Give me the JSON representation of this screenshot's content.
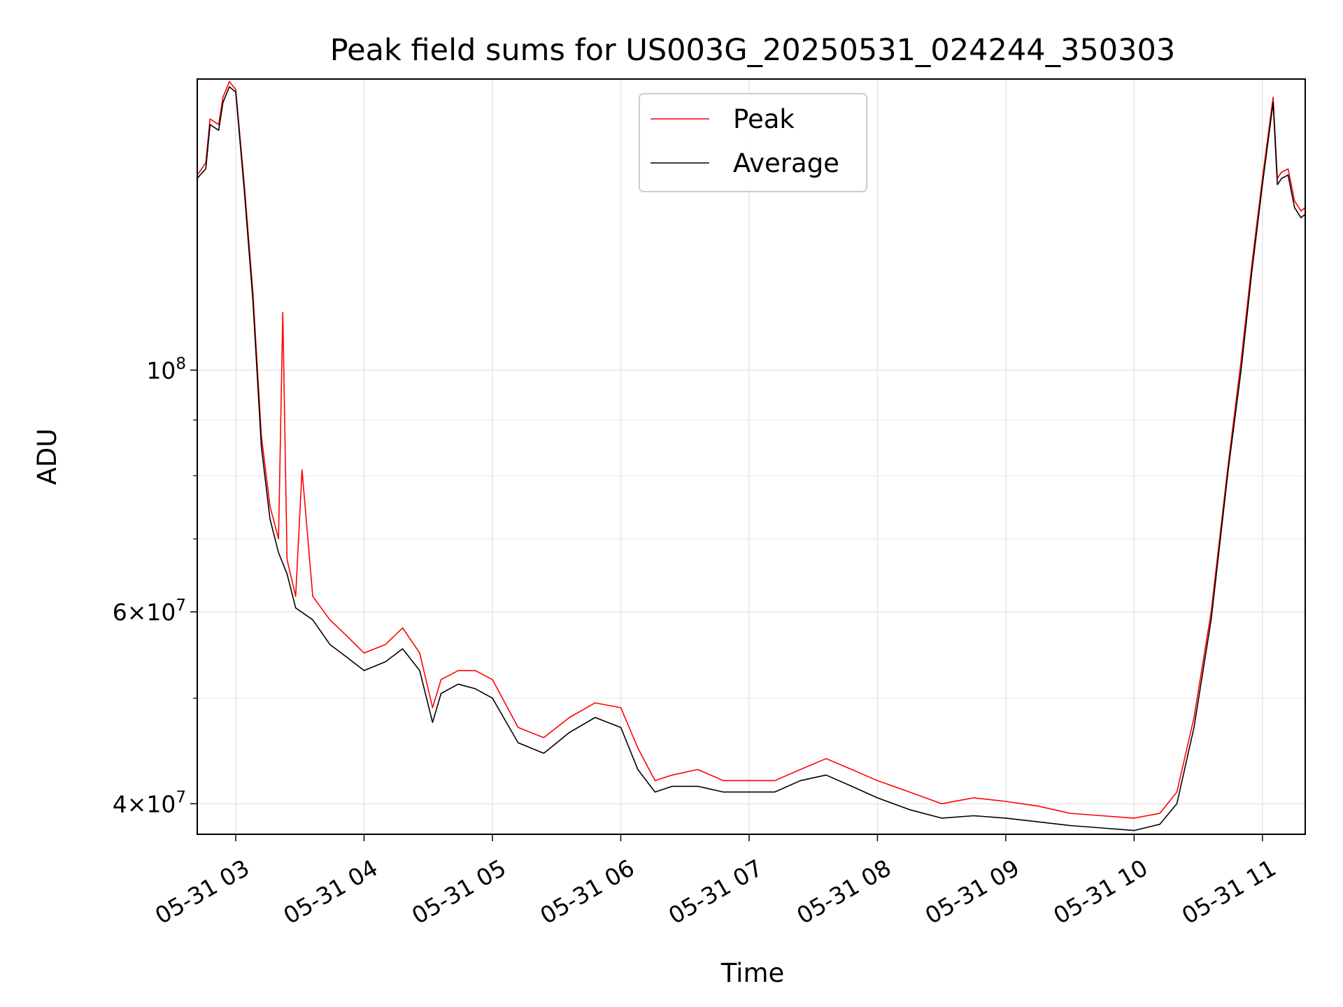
{
  "chart_data": {
    "type": "line",
    "title": "Peak field sums for US003G_20250531_024244_350303",
    "xlabel": "Time",
    "ylabel": "ADU",
    "yscale": "log",
    "ylim": [
      37500000,
      185000000
    ],
    "xlim": [
      "2025-05-31 02:42",
      "2025-05-31 11:20"
    ],
    "x_ticks": [
      "05-31 03",
      "05-31 04",
      "05-31 05",
      "05-31 06",
      "05-31 07",
      "05-31 08",
      "05-31 09",
      "05-31 10",
      "05-31 11"
    ],
    "y_ticks": [
      {
        "value": 40000000,
        "base": "4",
        "exp": "7",
        "kind": "mant"
      },
      {
        "value": 60000000,
        "base": "6",
        "exp": "7",
        "kind": "mant"
      },
      {
        "value": 100000000,
        "base": "10",
        "exp": "8",
        "kind": "pow"
      }
    ],
    "y_minor_ticks": [
      50000000,
      70000000,
      80000000,
      90000000
    ],
    "grid": true,
    "legend_position": "top-center",
    "series": [
      {
        "name": "Peak",
        "color": "#ff0000",
        "x": [
          "2025-05-31 02:42",
          "2025-05-31 02:46",
          "2025-05-31 02:48",
          "2025-05-31 02:52",
          "2025-05-31 02:54",
          "2025-05-31 02:57",
          "2025-05-31 03:00",
          "2025-05-31 03:04",
          "2025-05-31 03:08",
          "2025-05-31 03:12",
          "2025-05-31 03:16",
          "2025-05-31 03:20",
          "2025-05-31 03:22",
          "2025-05-31 03:24",
          "2025-05-31 03:28",
          "2025-05-31 03:31",
          "2025-05-31 03:36",
          "2025-05-31 03:44",
          "2025-05-31 03:52",
          "2025-05-31 04:00",
          "2025-05-31 04:10",
          "2025-05-31 04:18",
          "2025-05-31 04:26",
          "2025-05-31 04:32",
          "2025-05-31 04:36",
          "2025-05-31 04:44",
          "2025-05-31 04:52",
          "2025-05-31 05:00",
          "2025-05-31 05:12",
          "2025-05-31 05:24",
          "2025-05-31 05:36",
          "2025-05-31 05:48",
          "2025-05-31 06:00",
          "2025-05-31 06:08",
          "2025-05-31 06:16",
          "2025-05-31 06:24",
          "2025-05-31 06:36",
          "2025-05-31 06:48",
          "2025-05-31 07:00",
          "2025-05-31 07:12",
          "2025-05-31 07:24",
          "2025-05-31 07:36",
          "2025-05-31 07:48",
          "2025-05-31 08:00",
          "2025-05-31 08:15",
          "2025-05-31 08:30",
          "2025-05-31 08:45",
          "2025-05-31 09:00",
          "2025-05-31 09:15",
          "2025-05-31 09:30",
          "2025-05-31 09:45",
          "2025-05-31 10:00",
          "2025-05-31 10:12",
          "2025-05-31 10:20",
          "2025-05-31 10:28",
          "2025-05-31 10:36",
          "2025-05-31 10:44",
          "2025-05-31 10:50",
          "2025-05-31 10:55",
          "2025-05-31 11:00",
          "2025-05-31 11:05",
          "2025-05-31 11:07",
          "2025-05-31 11:09",
          "2025-05-31 11:12",
          "2025-05-31 11:15",
          "2025-05-31 11:18",
          "2025-05-31 11:20"
        ],
        "values": [
          151000000,
          155000000,
          170000000,
          168000000,
          178000000,
          184000000,
          181000000,
          148000000,
          118000000,
          87000000,
          75000000,
          70000000,
          113000000,
          67000000,
          62000000,
          81000000,
          62000000,
          59000000,
          57000000,
          55000000,
          56000000,
          58000000,
          55000000,
          49000000,
          52000000,
          53000000,
          53000000,
          52000000,
          47000000,
          46000000,
          48000000,
          49500000,
          49000000,
          45000000,
          42000000,
          42500000,
          43000000,
          42000000,
          42000000,
          42000000,
          43000000,
          44000000,
          43000000,
          42000000,
          41000000,
          40000000,
          40500000,
          40200000,
          39800000,
          39200000,
          39000000,
          38800000,
          39200000,
          41000000,
          48000000,
          60000000,
          82000000,
          102000000,
          125000000,
          150000000,
          178000000,
          150000000,
          152000000,
          153000000,
          143000000,
          140000000,
          141000000
        ]
      },
      {
        "name": "Average",
        "color": "#000000",
        "x": [
          "2025-05-31 02:42",
          "2025-05-31 02:46",
          "2025-05-31 02:48",
          "2025-05-31 02:52",
          "2025-05-31 02:54",
          "2025-05-31 02:57",
          "2025-05-31 03:00",
          "2025-05-31 03:04",
          "2025-05-31 03:08",
          "2025-05-31 03:12",
          "2025-05-31 03:16",
          "2025-05-31 03:20",
          "2025-05-31 03:24",
          "2025-05-31 03:28",
          "2025-05-31 03:36",
          "2025-05-31 03:44",
          "2025-05-31 03:52",
          "2025-05-31 04:00",
          "2025-05-31 04:10",
          "2025-05-31 04:18",
          "2025-05-31 04:26",
          "2025-05-31 04:32",
          "2025-05-31 04:36",
          "2025-05-31 04:44",
          "2025-05-31 04:52",
          "2025-05-31 05:00",
          "2025-05-31 05:12",
          "2025-05-31 05:24",
          "2025-05-31 05:36",
          "2025-05-31 05:48",
          "2025-05-31 06:00",
          "2025-05-31 06:08",
          "2025-05-31 06:16",
          "2025-05-31 06:24",
          "2025-05-31 06:36",
          "2025-05-31 06:48",
          "2025-05-31 07:00",
          "2025-05-31 07:12",
          "2025-05-31 07:24",
          "2025-05-31 07:36",
          "2025-05-31 07:48",
          "2025-05-31 08:00",
          "2025-05-31 08:15",
          "2025-05-31 08:30",
          "2025-05-31 08:45",
          "2025-05-31 09:00",
          "2025-05-31 09:15",
          "2025-05-31 09:30",
          "2025-05-31 09:45",
          "2025-05-31 10:00",
          "2025-05-31 10:12",
          "2025-05-31 10:20",
          "2025-05-31 10:28",
          "2025-05-31 10:36",
          "2025-05-31 10:44",
          "2025-05-31 10:50",
          "2025-05-31 10:55",
          "2025-05-31 11:00",
          "2025-05-31 11:05",
          "2025-05-31 11:07",
          "2025-05-31 11:09",
          "2025-05-31 11:12",
          "2025-05-31 11:15",
          "2025-05-31 11:18",
          "2025-05-31 11:20"
        ],
        "values": [
          150000000,
          153000000,
          168000000,
          166000000,
          176000000,
          182000000,
          180000000,
          146000000,
          116000000,
          85000000,
          73000000,
          68000000,
          65000000,
          60500000,
          59000000,
          56000000,
          54500000,
          53000000,
          54000000,
          55500000,
          53000000,
          47500000,
          50500000,
          51500000,
          51000000,
          50000000,
          45500000,
          44500000,
          46500000,
          48000000,
          47000000,
          43000000,
          41000000,
          41500000,
          41500000,
          41000000,
          41000000,
          41000000,
          42000000,
          42500000,
          41500000,
          40500000,
          39500000,
          38800000,
          39000000,
          38800000,
          38500000,
          38200000,
          38000000,
          37800000,
          38300000,
          40000000,
          47000000,
          59000000,
          81000000,
          100000000,
          123000000,
          148000000,
          176000000,
          148000000,
          150000000,
          151000000,
          141000000,
          138000000,
          139000000
        ]
      }
    ]
  }
}
